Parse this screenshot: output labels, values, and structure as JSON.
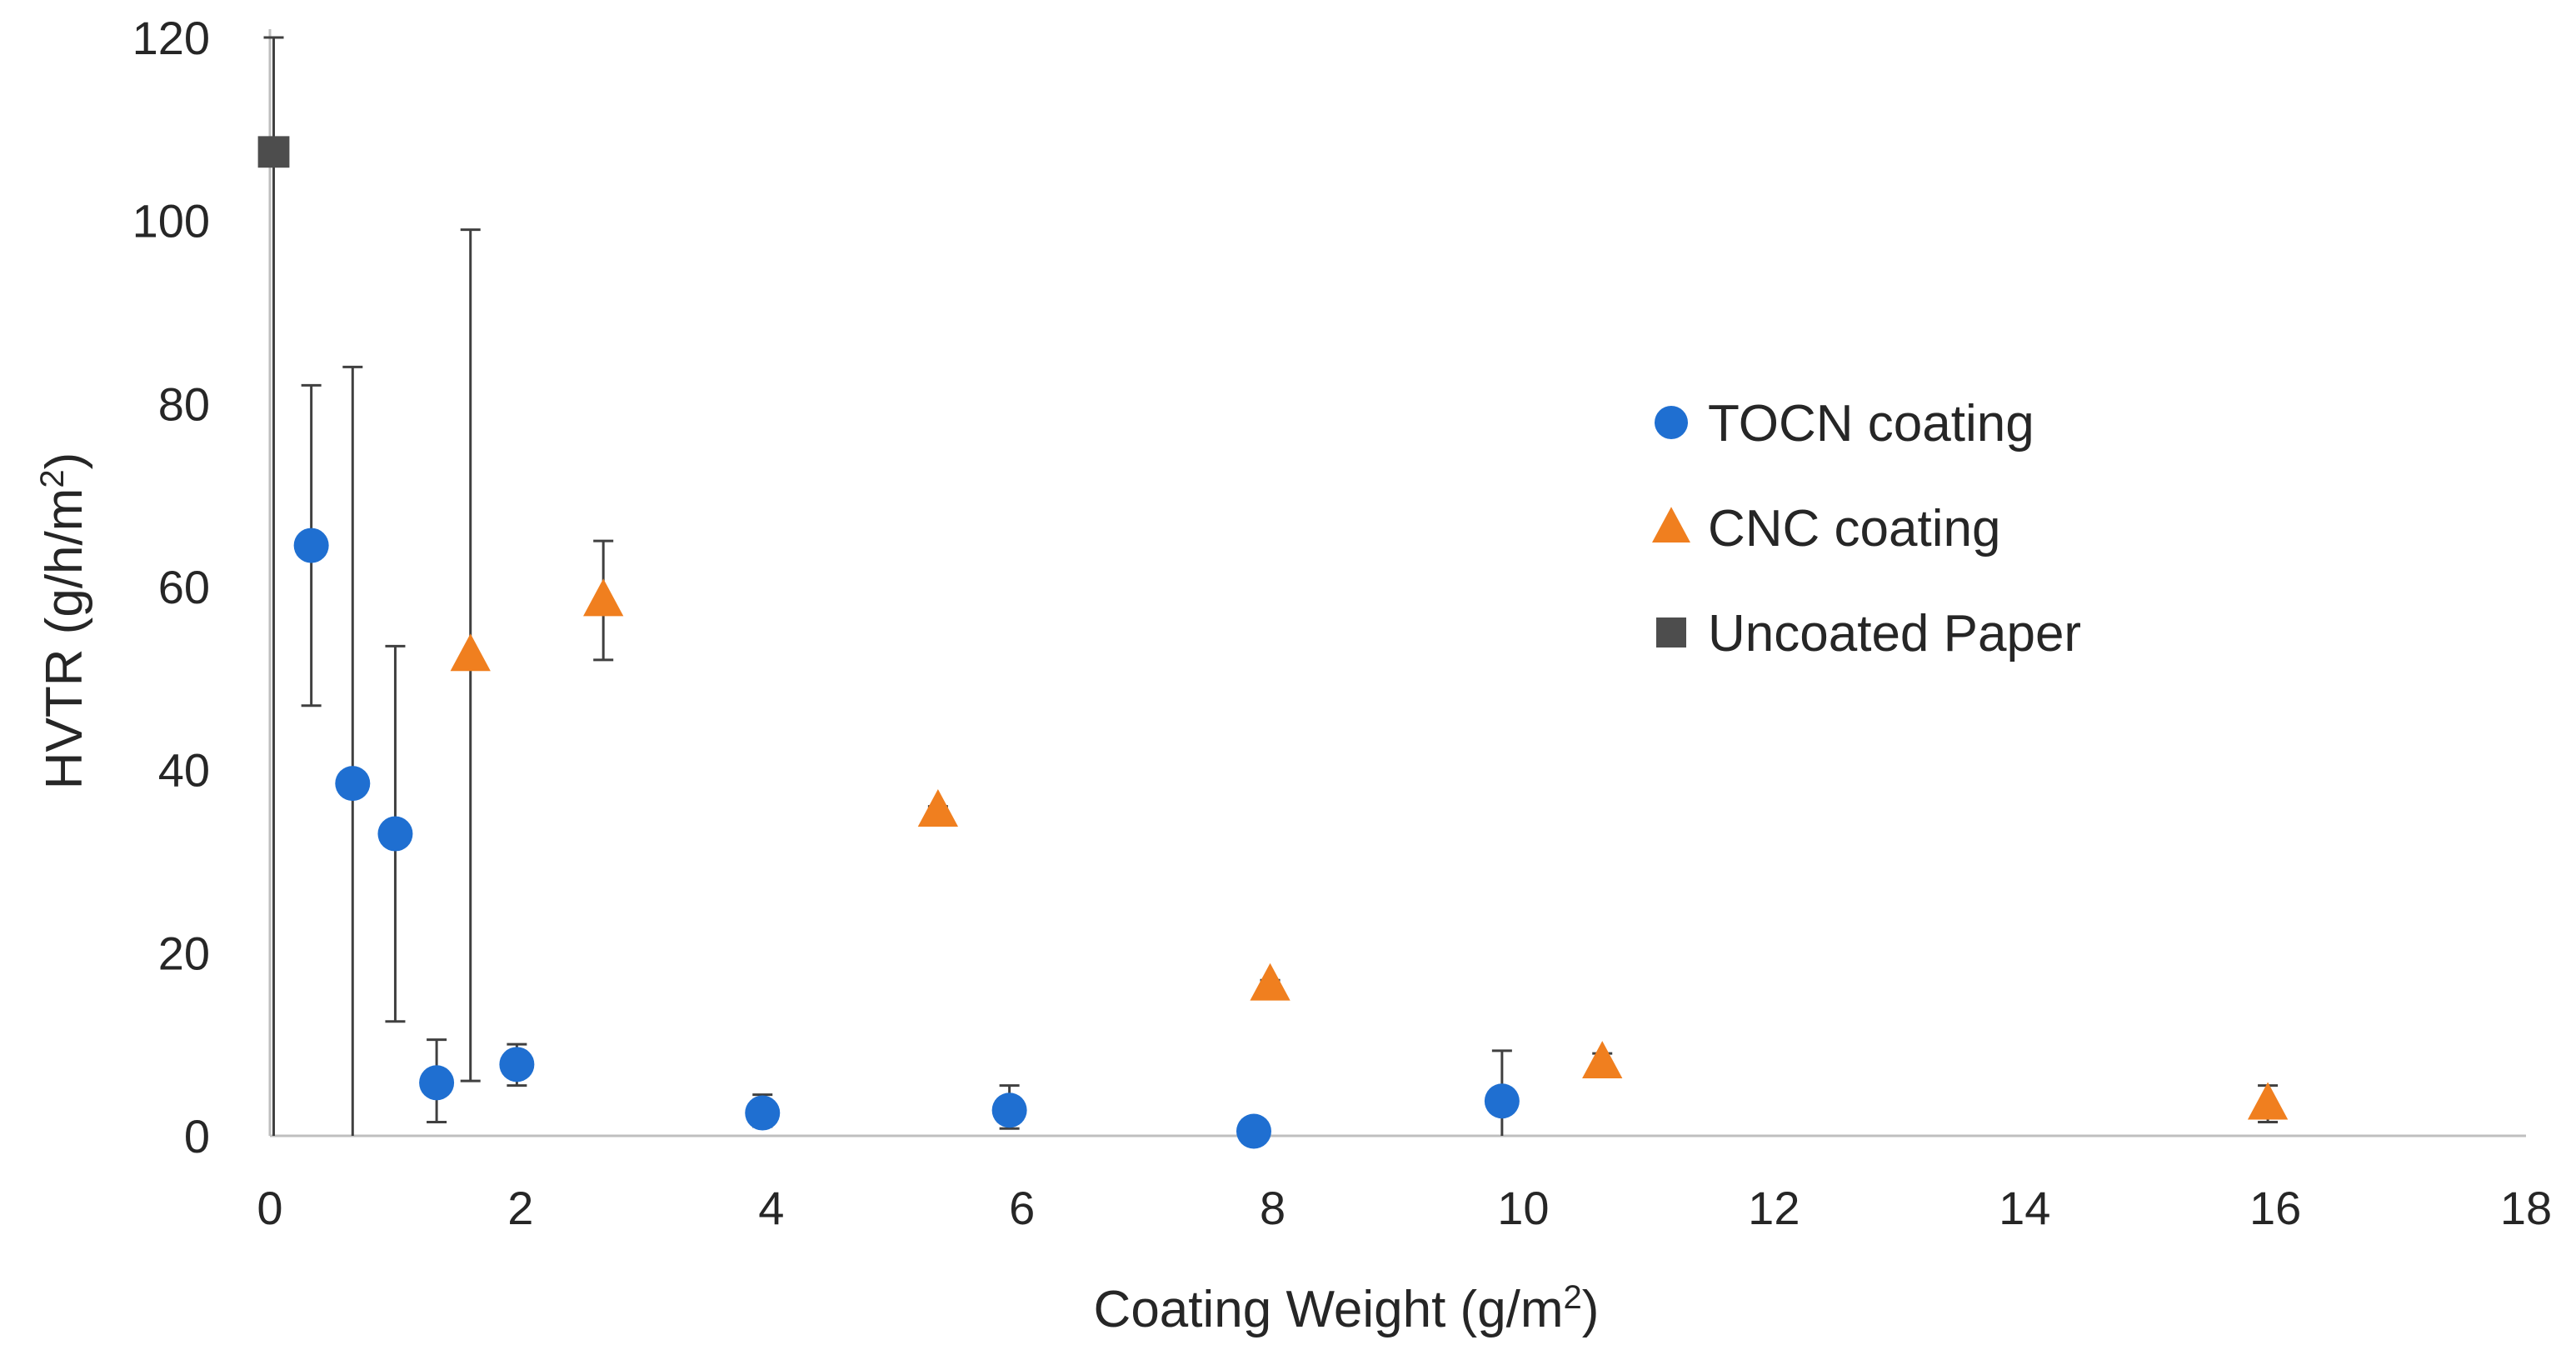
{
  "chart_data": {
    "type": "scatter",
    "title": "",
    "xlabel": "Coating  Weight (g/m",
    "xlabel_sup": "2",
    "xlabel_tail": ")",
    "ylabel": "HVTR (g/h/m",
    "ylabel_sup": "2",
    "ylabel_tail": ")",
    "xlim": [
      0,
      18
    ],
    "ylim": [
      0,
      120
    ],
    "x_ticks": [
      0,
      2,
      4,
      6,
      8,
      10,
      12,
      14,
      16,
      18
    ],
    "y_ticks": [
      0,
      20,
      40,
      60,
      80,
      100,
      120
    ],
    "grid": false,
    "legend_position": "right",
    "series": [
      {
        "name": "TOCN coating",
        "marker": "circle",
        "color": "#1f6fd1",
        "points": [
          {
            "x": 0.33,
            "y": 64.5,
            "err_low": 47.0,
            "err_high": 82.0
          },
          {
            "x": 0.66,
            "y": 38.5,
            "err_low": 0.0,
            "err_high": 84.0
          },
          {
            "x": 1.0,
            "y": 33.0,
            "err_low": 12.5,
            "err_high": 53.5
          },
          {
            "x": 1.33,
            "y": 5.8,
            "err_low": 1.5,
            "err_high": 10.5
          },
          {
            "x": 1.97,
            "y": 7.8,
            "err_low": 5.5,
            "err_high": 10.0
          },
          {
            "x": 3.93,
            "y": 2.5,
            "err_low": 1.0,
            "err_high": 4.5
          },
          {
            "x": 5.9,
            "y": 2.8,
            "err_low": 0.8,
            "err_high": 5.5
          },
          {
            "x": 7.85,
            "y": 0.5,
            "err_low": 0.2,
            "err_high": 0.9
          },
          {
            "x": 9.83,
            "y": 3.8,
            "err_low": 0.0,
            "err_high": 9.3
          }
        ]
      },
      {
        "name": "CNC coating",
        "marker": "triangle",
        "color": "#f07f1f",
        "points": [
          {
            "x": 1.6,
            "y": 52.5,
            "err_low": 6.0,
            "err_high": 99.0
          },
          {
            "x": 2.66,
            "y": 58.5,
            "err_low": 52.0,
            "err_high": 65.0
          },
          {
            "x": 5.33,
            "y": 35.5,
            "err_low": 35.0,
            "err_high": 36.0
          },
          {
            "x": 7.98,
            "y": 16.5,
            "err_low": 16.0,
            "err_high": 17.0
          },
          {
            "x": 10.63,
            "y": 8.0,
            "err_low": 7.5,
            "err_high": 9.0
          },
          {
            "x": 15.94,
            "y": 3.5,
            "err_low": 1.5,
            "err_high": 5.5
          }
        ]
      },
      {
        "name": "Uncoated Paper",
        "marker": "square",
        "color": "#4d4d4d",
        "points": [
          {
            "x": 0.03,
            "y": 107.5,
            "err_low": 0.0,
            "err_high": 120.0
          }
        ]
      }
    ],
    "colors": {
      "axis": "#bfbfbf",
      "error_bar": "#404040",
      "text": "#262626"
    }
  }
}
